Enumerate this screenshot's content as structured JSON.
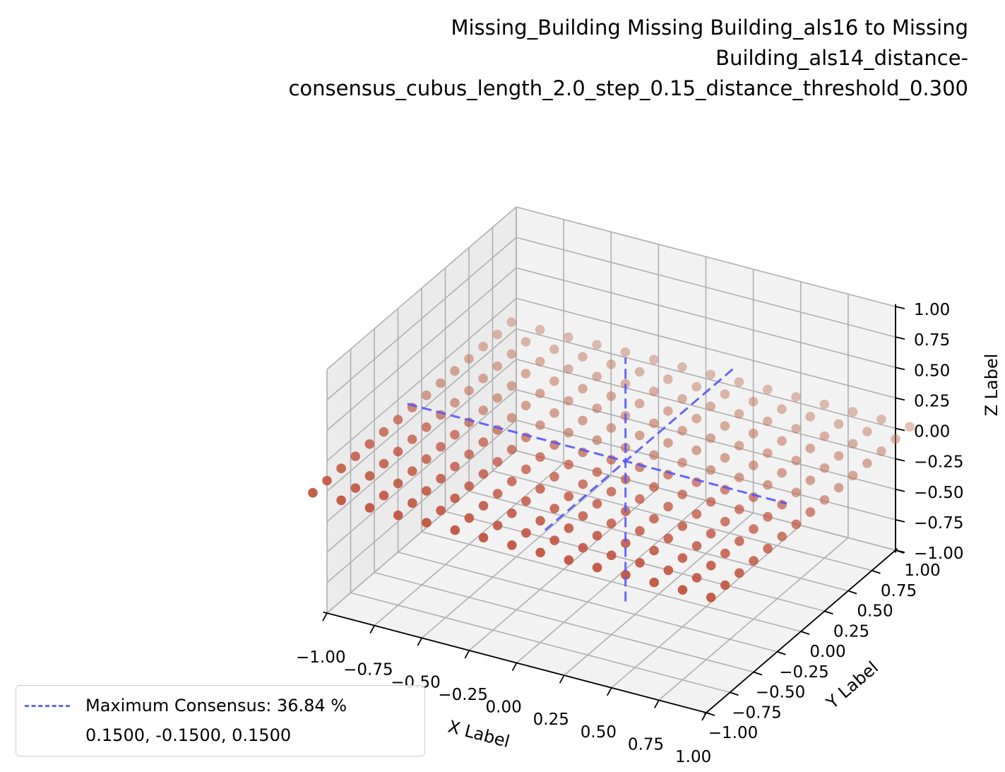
{
  "chart_data": {
    "type": "scatter",
    "title": "Missing_Building Missing Building_als16 to Missing\nBuilding_als14_distance-\nconsensus_cubus_length_2.0_step_0.15_distance_threshold_0.300",
    "xlabel": "X Label",
    "ylabel": "Y Label",
    "zlabel": "Z Label",
    "xlim": [
      -1.0,
      1.0
    ],
    "ylim": [
      -1.0,
      1.0
    ],
    "zlim": [
      -1.0,
      1.0
    ],
    "xticks": [
      "−1.00",
      "−0.75",
      "−0.50",
      "−0.25",
      "0.00",
      "0.25",
      "0.50",
      "0.75",
      "1.00"
    ],
    "yticks": [
      "−1.00",
      "−0.75",
      "−0.50",
      "−0.25",
      "0.00",
      "0.25",
      "0.50",
      "0.75",
      "1.00"
    ],
    "zticks": [
      "−1.00",
      "−0.75",
      "−0.50",
      "−0.25",
      "0.00",
      "0.25",
      "0.50",
      "0.75",
      "1.00"
    ],
    "grid": true,
    "points": {
      "description_grid": "regular x-y grid at z = 0",
      "x_start": -1.05,
      "x_step": 0.15,
      "x_count": 15,
      "y_start": -1.05,
      "y_step": 0.15,
      "y_count": 15,
      "z": 0.0,
      "color": "#c0503a"
    },
    "max_consensus": {
      "x": 0.15,
      "y": -0.15,
      "z": 0.15,
      "line_color": "#5555ff",
      "legend_label": "Maximum Consensus: 36.84 %",
      "legend_coords": "0.1500, -0.1500, 0.1500"
    },
    "legend_position": "lower-left"
  }
}
